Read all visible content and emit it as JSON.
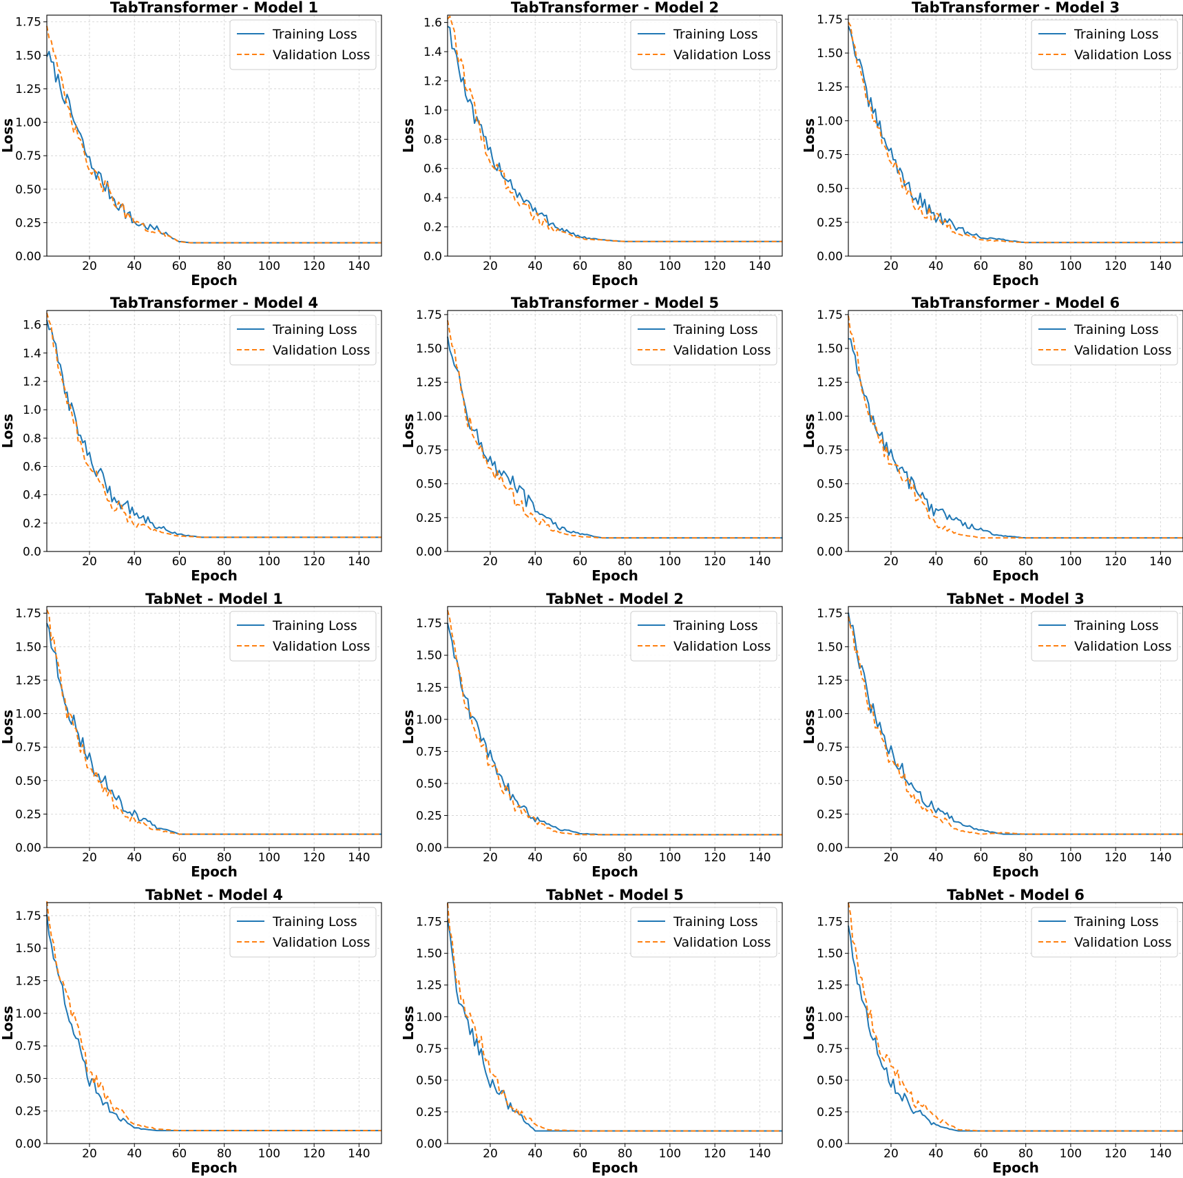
{
  "figure": {
    "panels": [
      {
        "title": "TabTransformer - Model 1"
      },
      {
        "title": "TabTransformer - Model 2"
      },
      {
        "title": "TabTransformer - Model 3"
      },
      {
        "title": "TabTransformer - Model 4"
      },
      {
        "title": "TabTransformer - Model 5"
      },
      {
        "title": "TabTransformer - Model 6"
      },
      {
        "title": "TabNet - Model 1"
      },
      {
        "title": "TabNet - Model 2"
      },
      {
        "title": "TabNet - Model 3"
      },
      {
        "title": "TabNet - Model 4"
      },
      {
        "title": "TabNet - Model 5"
      },
      {
        "title": "TabNet - Model 6"
      }
    ]
  },
  "colors": {
    "training": "#1f77b4",
    "validation": "#ff7f0e"
  },
  "chart_data": [
    {
      "type": "line",
      "title": "TabTransformer - Model 1",
      "xlabel": "Epoch",
      "ylabel": "Loss",
      "xlim": [
        1,
        150
      ],
      "ylim": [
        0,
        1.8
      ],
      "xticks": [
        20,
        40,
        60,
        80,
        100,
        120,
        140
      ],
      "yticks": [
        0.0,
        0.25,
        0.5,
        0.75,
        1.0,
        1.25,
        1.5,
        1.75
      ],
      "ytick_labels": [
        "0.00",
        "0.25",
        "0.50",
        "0.75",
        "1.00",
        "1.25",
        "1.50",
        "1.75"
      ],
      "grid": true,
      "legend": "top-right",
      "x": [
        1,
        10,
        20,
        30,
        40,
        50,
        60,
        65,
        80,
        100,
        120,
        150
      ],
      "series": [
        {
          "name": "Training Loss",
          "style": "solid",
          "values": [
            1.52,
            1.15,
            0.7,
            0.45,
            0.25,
            0.2,
            0.11,
            0.1,
            0.1,
            0.1,
            0.1,
            0.1
          ]
        },
        {
          "name": "Validation Loss",
          "style": "dashed",
          "values": [
            1.75,
            1.1,
            0.65,
            0.45,
            0.24,
            0.18,
            0.11,
            0.1,
            0.1,
            0.1,
            0.1,
            0.1
          ]
        }
      ]
    },
    {
      "type": "line",
      "title": "TabTransformer - Model 2",
      "xlabel": "Epoch",
      "ylabel": "Loss",
      "xlim": [
        1,
        150
      ],
      "ylim": [
        0,
        1.65
      ],
      "xticks": [
        20,
        40,
        60,
        80,
        100,
        120,
        140
      ],
      "yticks": [
        0.0,
        0.2,
        0.4,
        0.6,
        0.8,
        1.0,
        1.2,
        1.4,
        1.6
      ],
      "ytick_labels": [
        "0.0",
        "0.2",
        "0.4",
        "0.6",
        "0.8",
        "1.0",
        "1.2",
        "1.4",
        "1.6"
      ],
      "grid": true,
      "legend": "top-right",
      "x": [
        1,
        10,
        20,
        30,
        40,
        50,
        60,
        70,
        80,
        100,
        120,
        150
      ],
      "series": [
        {
          "name": "Training Loss",
          "style": "solid",
          "values": [
            1.6,
            1.05,
            0.7,
            0.48,
            0.3,
            0.2,
            0.13,
            0.11,
            0.1,
            0.1,
            0.1,
            0.1
          ]
        },
        {
          "name": "Validation Loss",
          "style": "dashed",
          "values": [
            1.65,
            1.15,
            0.65,
            0.45,
            0.27,
            0.17,
            0.12,
            0.11,
            0.1,
            0.1,
            0.1,
            0.1
          ]
        }
      ]
    },
    {
      "type": "line",
      "title": "TabTransformer - Model 3",
      "xlabel": "Epoch",
      "ylabel": "Loss",
      "xlim": [
        1,
        150
      ],
      "ylim": [
        0,
        1.78
      ],
      "xticks": [
        20,
        40,
        60,
        80,
        100,
        120,
        140
      ],
      "yticks": [
        0.0,
        0.25,
        0.5,
        0.75,
        1.0,
        1.25,
        1.5,
        1.75
      ],
      "ytick_labels": [
        "0.00",
        "0.25",
        "0.50",
        "0.75",
        "1.00",
        "1.25",
        "1.50",
        "1.75"
      ],
      "grid": true,
      "legend": "top-right",
      "x": [
        1,
        10,
        20,
        30,
        40,
        50,
        60,
        70,
        80,
        100,
        120,
        150
      ],
      "series": [
        {
          "name": "Training Loss",
          "style": "solid",
          "values": [
            1.72,
            1.15,
            0.75,
            0.45,
            0.3,
            0.2,
            0.14,
            0.12,
            0.1,
            0.1,
            0.1,
            0.1
          ]
        },
        {
          "name": "Validation Loss",
          "style": "dashed",
          "values": [
            1.75,
            1.1,
            0.7,
            0.4,
            0.28,
            0.17,
            0.12,
            0.11,
            0.1,
            0.1,
            0.1,
            0.1
          ]
        }
      ]
    },
    {
      "type": "line",
      "title": "TabTransformer - Model 4",
      "xlabel": "Epoch",
      "ylabel": "Loss",
      "xlim": [
        1,
        150
      ],
      "ylim": [
        0,
        1.7
      ],
      "xticks": [
        20,
        40,
        60,
        80,
        100,
        120,
        140
      ],
      "yticks": [
        0.0,
        0.2,
        0.4,
        0.6,
        0.8,
        1.0,
        1.2,
        1.4,
        1.6
      ],
      "ytick_labels": [
        "0.0",
        "0.2",
        "0.4",
        "0.6",
        "0.8",
        "1.0",
        "1.2",
        "1.4",
        "1.6"
      ],
      "grid": true,
      "legend": "top-right",
      "x": [
        1,
        10,
        20,
        30,
        40,
        50,
        60,
        70,
        80,
        100,
        120,
        150
      ],
      "series": [
        {
          "name": "Training Loss",
          "style": "solid",
          "values": [
            1.65,
            1.1,
            0.65,
            0.4,
            0.28,
            0.18,
            0.12,
            0.1,
            0.1,
            0.1,
            0.1,
            0.1
          ]
        },
        {
          "name": "Validation Loss",
          "style": "dashed",
          "values": [
            1.7,
            1.05,
            0.6,
            0.35,
            0.2,
            0.14,
            0.11,
            0.1,
            0.1,
            0.1,
            0.1,
            0.1
          ]
        }
      ]
    },
    {
      "type": "line",
      "title": "TabTransformer - Model 5",
      "xlabel": "Epoch",
      "ylabel": "Loss",
      "xlim": [
        1,
        150
      ],
      "ylim": [
        0,
        1.78
      ],
      "xticks": [
        20,
        40,
        60,
        80,
        100,
        120,
        140
      ],
      "yticks": [
        0.0,
        0.25,
        0.5,
        0.75,
        1.0,
        1.25,
        1.5,
        1.75
      ],
      "ytick_labels": [
        "0.00",
        "0.25",
        "0.50",
        "0.75",
        "1.00",
        "1.25",
        "1.50",
        "1.75"
      ],
      "grid": true,
      "legend": "top-right",
      "x": [
        1,
        10,
        20,
        30,
        40,
        50,
        60,
        70,
        80,
        100,
        120,
        150
      ],
      "series": [
        {
          "name": "Training Loss",
          "style": "solid",
          "values": [
            1.6,
            1.0,
            0.65,
            0.5,
            0.3,
            0.18,
            0.13,
            0.1,
            0.1,
            0.1,
            0.1,
            0.1
          ]
        },
        {
          "name": "Validation Loss",
          "style": "dashed",
          "values": [
            1.72,
            0.98,
            0.62,
            0.4,
            0.25,
            0.14,
            0.11,
            0.1,
            0.1,
            0.1,
            0.1,
            0.1
          ]
        }
      ]
    },
    {
      "type": "line",
      "title": "TabTransformer - Model 6",
      "xlabel": "Epoch",
      "ylabel": "Loss",
      "xlim": [
        1,
        150
      ],
      "ylim": [
        0,
        1.78
      ],
      "xticks": [
        20,
        40,
        60,
        80,
        100,
        120,
        140
      ],
      "yticks": [
        0.0,
        0.25,
        0.5,
        0.75,
        1.0,
        1.25,
        1.5,
        1.75
      ],
      "ytick_labels": [
        "0.00",
        "0.25",
        "0.50",
        "0.75",
        "1.00",
        "1.25",
        "1.50",
        "1.75"
      ],
      "grid": true,
      "legend": "top-right",
      "x": [
        1,
        10,
        20,
        30,
        40,
        50,
        60,
        67,
        80,
        100,
        120,
        150
      ],
      "series": [
        {
          "name": "Training Loss",
          "style": "solid",
          "values": [
            1.58,
            1.05,
            0.7,
            0.48,
            0.3,
            0.22,
            0.16,
            0.12,
            0.1,
            0.1,
            0.1,
            0.1
          ]
        },
        {
          "name": "Validation Loss",
          "style": "dashed",
          "values": [
            1.75,
            1.0,
            0.65,
            0.45,
            0.2,
            0.13,
            0.1,
            0.1,
            0.1,
            0.1,
            0.1,
            0.1
          ]
        }
      ]
    },
    {
      "type": "line",
      "title": "TabNet - Model 1",
      "xlabel": "Epoch",
      "ylabel": "Loss",
      "xlim": [
        1,
        150
      ],
      "ylim": [
        0,
        1.8
      ],
      "xticks": [
        20,
        40,
        60,
        80,
        100,
        120,
        140
      ],
      "yticks": [
        0.0,
        0.25,
        0.5,
        0.75,
        1.0,
        1.25,
        1.5,
        1.75
      ],
      "ytick_labels": [
        "0.00",
        "0.25",
        "0.50",
        "0.75",
        "1.00",
        "1.25",
        "1.50",
        "1.75"
      ],
      "grid": true,
      "legend": "top-right",
      "x": [
        1,
        10,
        20,
        30,
        40,
        50,
        60,
        70,
        80,
        100,
        120,
        150
      ],
      "series": [
        {
          "name": "Training Loss",
          "style": "solid",
          "values": [
            1.68,
            1.05,
            0.65,
            0.4,
            0.25,
            0.15,
            0.1,
            0.1,
            0.1,
            0.1,
            0.1,
            0.1
          ]
        },
        {
          "name": "Validation Loss",
          "style": "dashed",
          "values": [
            1.78,
            1.0,
            0.6,
            0.35,
            0.2,
            0.13,
            0.1,
            0.1,
            0.1,
            0.1,
            0.1,
            0.1
          ]
        }
      ]
    },
    {
      "type": "line",
      "title": "TabNet - Model 2",
      "xlabel": "Epoch",
      "ylabel": "Loss",
      "xlim": [
        1,
        150
      ],
      "ylim": [
        0,
        1.88
      ],
      "xticks": [
        20,
        40,
        60,
        80,
        100,
        120,
        140
      ],
      "yticks": [
        0.0,
        0.25,
        0.5,
        0.75,
        1.0,
        1.25,
        1.5,
        1.75
      ],
      "ytick_labels": [
        "0.00",
        "0.25",
        "0.50",
        "0.75",
        "1.00",
        "1.25",
        "1.50",
        "1.75"
      ],
      "grid": true,
      "legend": "top-right",
      "x": [
        1,
        10,
        20,
        30,
        40,
        50,
        60,
        70,
        80,
        100,
        120,
        150
      ],
      "series": [
        {
          "name": "Training Loss",
          "style": "solid",
          "values": [
            1.75,
            1.1,
            0.7,
            0.4,
            0.23,
            0.15,
            0.11,
            0.1,
            0.1,
            0.1,
            0.1,
            0.1
          ]
        },
        {
          "name": "Validation Loss",
          "style": "dashed",
          "values": [
            1.85,
            1.05,
            0.65,
            0.35,
            0.2,
            0.12,
            0.1,
            0.1,
            0.1,
            0.1,
            0.1,
            0.1
          ]
        }
      ]
    },
    {
      "type": "line",
      "title": "TabNet - Model 3",
      "xlabel": "Epoch",
      "ylabel": "Loss",
      "xlim": [
        1,
        150
      ],
      "ylim": [
        0,
        1.8
      ],
      "xticks": [
        20,
        40,
        60,
        80,
        100,
        120,
        140
      ],
      "yticks": [
        0.0,
        0.25,
        0.5,
        0.75,
        1.0,
        1.25,
        1.5,
        1.75
      ],
      "ytick_labels": [
        "0.00",
        "0.25",
        "0.50",
        "0.75",
        "1.00",
        "1.25",
        "1.50",
        "1.75"
      ],
      "grid": true,
      "legend": "top-right",
      "x": [
        1,
        10,
        20,
        30,
        40,
        50,
        60,
        70,
        80,
        100,
        120,
        150
      ],
      "series": [
        {
          "name": "Training Loss",
          "style": "solid",
          "values": [
            1.75,
            1.1,
            0.7,
            0.45,
            0.28,
            0.18,
            0.13,
            0.1,
            0.1,
            0.1,
            0.1,
            0.1
          ]
        },
        {
          "name": "Validation Loss",
          "style": "dashed",
          "values": [
            1.72,
            1.05,
            0.65,
            0.4,
            0.25,
            0.13,
            0.1,
            0.11,
            0.1,
            0.1,
            0.1,
            0.1
          ]
        }
      ]
    },
    {
      "type": "line",
      "title": "TabNet - Model 4",
      "xlabel": "Epoch",
      "ylabel": "Loss",
      "xlim": [
        1,
        150
      ],
      "ylim": [
        0,
        1.85
      ],
      "xticks": [
        20,
        40,
        60,
        80,
        100,
        120,
        140
      ],
      "yticks": [
        0.0,
        0.25,
        0.5,
        0.75,
        1.0,
        1.25,
        1.5,
        1.75
      ],
      "ytick_labels": [
        "0.00",
        "0.25",
        "0.50",
        "0.75",
        "1.00",
        "1.25",
        "1.50",
        "1.75"
      ],
      "grid": true,
      "legend": "top-right",
      "x": [
        1,
        5,
        10,
        15,
        20,
        30,
        40,
        50,
        60,
        80,
        100,
        150
      ],
      "series": [
        {
          "name": "Training Loss",
          "style": "solid",
          "values": [
            1.75,
            1.35,
            1.05,
            0.75,
            0.5,
            0.25,
            0.12,
            0.1,
            0.1,
            0.1,
            0.1,
            0.1
          ]
        },
        {
          "name": "Validation Loss",
          "style": "dashed",
          "values": [
            1.85,
            1.4,
            1.1,
            0.85,
            0.55,
            0.3,
            0.15,
            0.11,
            0.1,
            0.1,
            0.1,
            0.1
          ]
        }
      ]
    },
    {
      "type": "line",
      "title": "TabNet - Model 5",
      "xlabel": "Epoch",
      "ylabel": "Loss",
      "xlim": [
        1,
        150
      ],
      "ylim": [
        0,
        1.9
      ],
      "xticks": [
        20,
        40,
        60,
        80,
        100,
        120,
        140
      ],
      "yticks": [
        0.0,
        0.25,
        0.5,
        0.75,
        1.0,
        1.25,
        1.5,
        1.75
      ],
      "ytick_labels": [
        "0.00",
        "0.25",
        "0.50",
        "0.75",
        "1.00",
        "1.25",
        "1.50",
        "1.75"
      ],
      "grid": true,
      "legend": "top-right",
      "x": [
        1,
        5,
        10,
        15,
        20,
        30,
        40,
        45,
        60,
        80,
        100,
        150
      ],
      "series": [
        {
          "name": "Training Loss",
          "style": "solid",
          "values": [
            1.75,
            1.2,
            0.95,
            0.75,
            0.5,
            0.28,
            0.1,
            0.1,
            0.1,
            0.1,
            0.1,
            0.1
          ]
        },
        {
          "name": "Validation Loss",
          "style": "dashed",
          "values": [
            1.88,
            1.3,
            1.0,
            0.85,
            0.55,
            0.3,
            0.15,
            0.11,
            0.1,
            0.1,
            0.1,
            0.1
          ]
        }
      ]
    },
    {
      "type": "line",
      "title": "TabNet - Model 6",
      "xlabel": "Epoch",
      "ylabel": "Loss",
      "xlim": [
        1,
        150
      ],
      "ylim": [
        0,
        1.9
      ],
      "xticks": [
        20,
        40,
        60,
        80,
        100,
        120,
        140
      ],
      "yticks": [
        0.0,
        0.25,
        0.5,
        0.75,
        1.0,
        1.25,
        1.5,
        1.75
      ],
      "ytick_labels": [
        "0.00",
        "0.25",
        "0.50",
        "0.75",
        "1.00",
        "1.25",
        "1.50",
        "1.75"
      ],
      "grid": true,
      "legend": "top-right",
      "x": [
        1,
        5,
        10,
        15,
        20,
        30,
        40,
        50,
        60,
        80,
        100,
        150
      ],
      "series": [
        {
          "name": "Training Loss",
          "style": "solid",
          "values": [
            1.7,
            1.3,
            0.95,
            0.7,
            0.5,
            0.27,
            0.14,
            0.1,
            0.1,
            0.1,
            0.1,
            0.1
          ]
        },
        {
          "name": "Validation Loss",
          "style": "dashed",
          "values": [
            1.88,
            1.4,
            1.05,
            0.75,
            0.6,
            0.35,
            0.2,
            0.11,
            0.1,
            0.1,
            0.1,
            0.1
          ]
        }
      ]
    }
  ]
}
